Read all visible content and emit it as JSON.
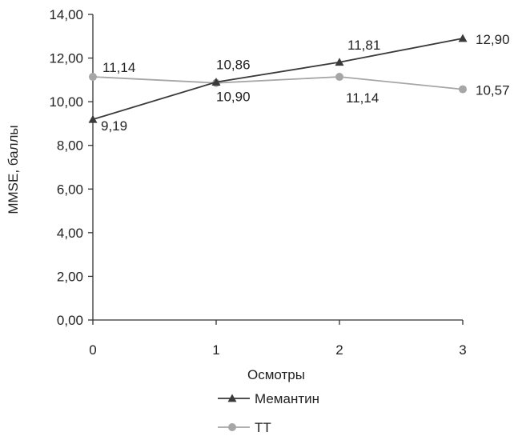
{
  "chart_data": {
    "type": "line",
    "title": "",
    "xlabel": "Осмотры",
    "ylabel": "MMSE, баллы",
    "x": [
      0,
      1,
      2,
      3
    ],
    "x_tick_labels": [
      "0",
      "1",
      "2",
      "3"
    ],
    "ylim": [
      0,
      14
    ],
    "y_ticks": [
      0,
      2,
      4,
      6,
      8,
      10,
      12,
      14
    ],
    "y_tick_labels": [
      "0,00",
      "2,00",
      "4,00",
      "6,00",
      "8,00",
      "10,00",
      "12,00",
      "14,00"
    ],
    "grid": false,
    "legend_position": "bottom",
    "series": [
      {
        "name": "Мемантин",
        "marker": "triangle",
        "color": "#3a3a3a",
        "values": [
          9.19,
          10.9,
          11.81,
          12.9
        ],
        "labels": [
          "9,19",
          "10,90",
          "11,81",
          "12,90"
        ]
      },
      {
        "name": "ТТ",
        "marker": "circle",
        "color": "#a6a6a6",
        "values": [
          11.14,
          10.86,
          11.14,
          10.57
        ],
        "labels": [
          "11,14",
          "10,86",
          "11,14",
          "10,57"
        ]
      }
    ]
  }
}
